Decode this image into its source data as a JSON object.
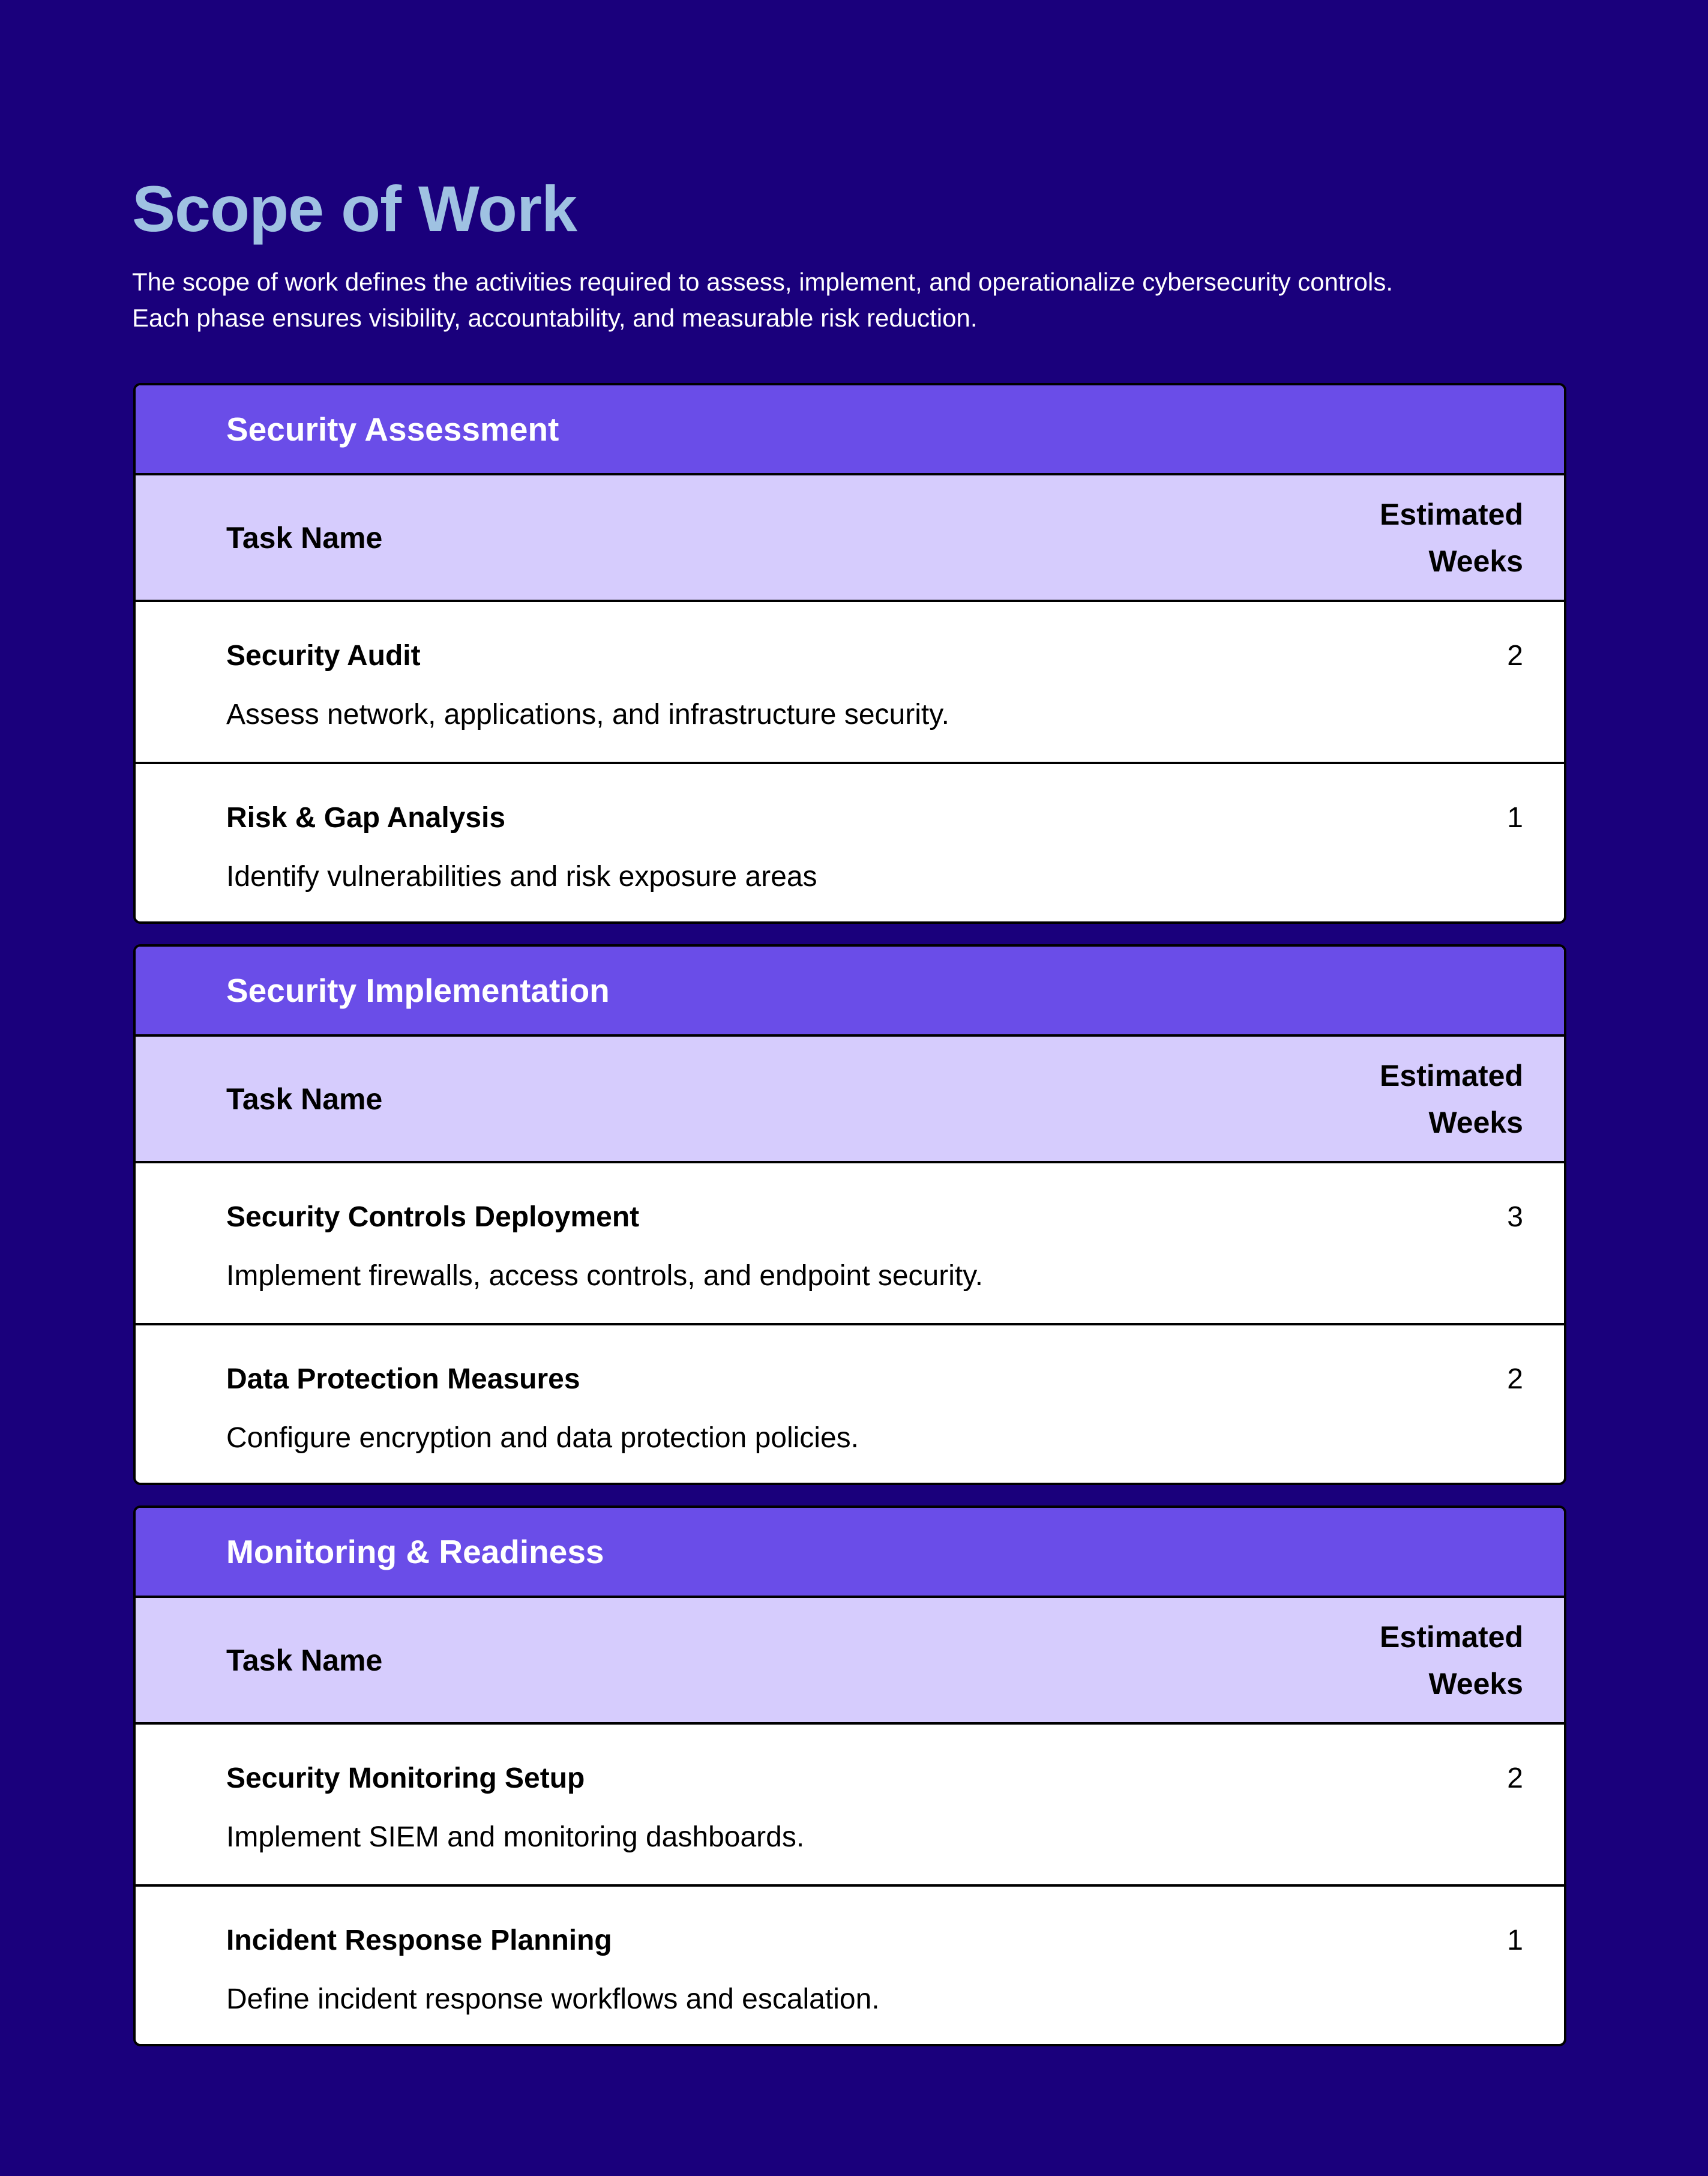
{
  "page": {
    "title": "Scope of Work",
    "intro_line1": "The scope of work defines the activities required to assess, implement, and operationalize cybersecurity controls.",
    "intro_line2": "Each phase ensures visibility, accountability, and measurable risk reduction."
  },
  "colors": {
    "background": "#1a007c",
    "title": "#9fc2e2",
    "section_header": "#6a4de8",
    "column_header": "#d6ccfd"
  },
  "sections": [
    {
      "title": "Security Assessment",
      "col_task": "Task Name",
      "col_weeks_1": "Estimated",
      "col_weeks_2": "Weeks",
      "rows": [
        {
          "name": "Security Audit",
          "desc": "Assess network, applications, and infrastructure security.",
          "weeks": "2"
        },
        {
          "name": "Risk & Gap Analysis",
          "desc": "Identify vulnerabilities and risk exposure areas",
          "weeks": "1"
        }
      ]
    },
    {
      "title": "Security Implementation",
      "col_task": "Task Name",
      "col_weeks_1": "Estimated",
      "col_weeks_2": "Weeks",
      "rows": [
        {
          "name": "Security Controls Deployment",
          "desc": "Implement firewalls, access controls, and endpoint security.",
          "weeks": "3"
        },
        {
          "name": "Data Protection Measures",
          "desc": "Configure encryption and data protection policies.",
          "weeks": "2"
        }
      ]
    },
    {
      "title": "Monitoring & Readiness",
      "col_task": "Task Name",
      "col_weeks_1": "Estimated",
      "col_weeks_2": "Weeks",
      "rows": [
        {
          "name": "Security Monitoring Setup",
          "desc": "Implement SIEM and monitoring dashboards.",
          "weeks": "2"
        },
        {
          "name": "Incident Response Planning",
          "desc": "Define incident response workflows and escalation.",
          "weeks": "1"
        }
      ]
    }
  ]
}
